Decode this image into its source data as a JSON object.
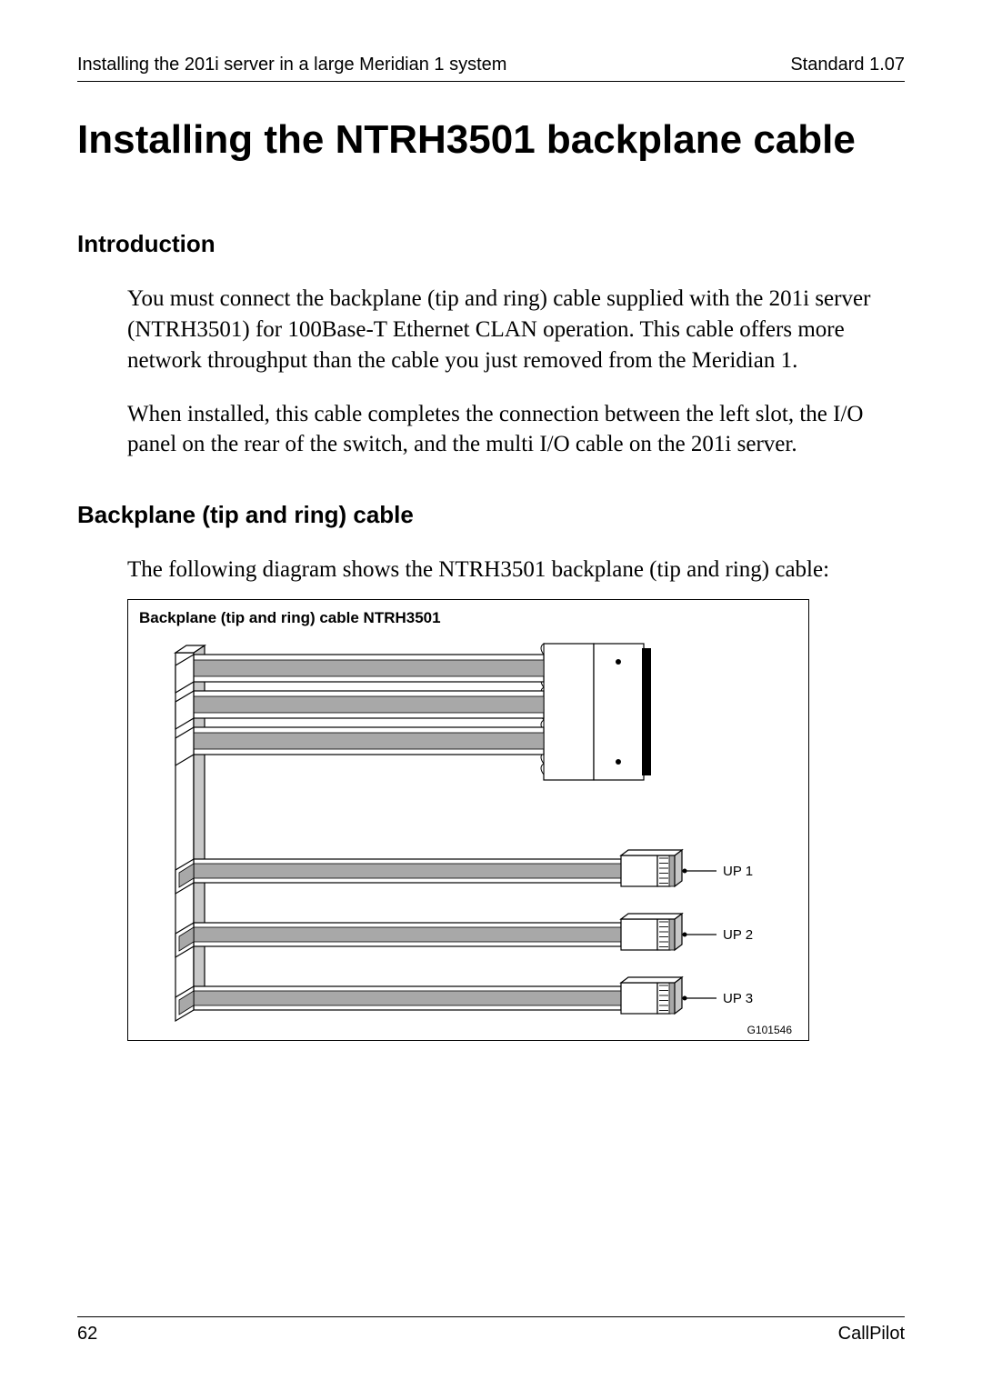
{
  "header": {
    "left": "Installing the 201i server in a large Meridian 1 system",
    "right": "Standard 1.07"
  },
  "title": "Installing the NTRH3501 backplane cable",
  "sections": {
    "intro_head": "Introduction",
    "intro_p1": "You must connect the backplane (tip and ring) cable supplied with the 201i server (NTRH3501) for 100Base-T Ethernet CLAN operation. This cable offers more network throughput than the cable you just removed from the Meridian 1.",
    "intro_p2": "When installed, this cable completes the connection between the left slot, the I/O panel on the rear of the switch, and the multi I/O cable on the 201i server.",
    "cable_head": "Backplane (tip and ring) cable",
    "cable_p1": "The following diagram shows the NTRH3501 backplane (tip and ring) cable:"
  },
  "diagram": {
    "type": "technical-illustration",
    "title": "Backplane (tip and ring) cable NTRH3501",
    "reference_id": "G101546",
    "aspect_ratio": "720x440",
    "background_color": "#ffffff",
    "line_color": "#000000",
    "fill_dark": "#a8a8a8",
    "fill_mid": "#c8c8c8",
    "fill_light": "#ffffff",
    "label_font_family": "Arial",
    "label_fontsize": 15,
    "labels": {
      "up1": "UP 1",
      "up2": "UP 2",
      "up3": "UP 3"
    }
  },
  "footer": {
    "page_number": "62",
    "product": "CallPilot"
  }
}
